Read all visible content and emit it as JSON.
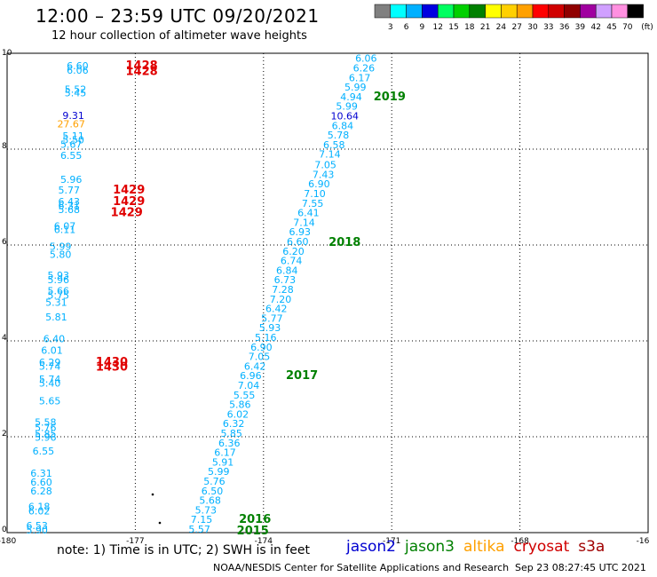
{
  "header": {
    "title": "12:00 – 23:59 UTC 09/20/2021",
    "subtitle": "12 hour collection of altimeter wave heights"
  },
  "scale": {
    "unit": "(ft)",
    "ticks": [
      "3",
      "6",
      "9",
      "12",
      "15",
      "18",
      "21",
      "24",
      "27",
      "30",
      "33",
      "36",
      "39",
      "42",
      "45",
      "70"
    ],
    "colors": [
      "#808080",
      "#00ffff",
      "#00b0ff",
      "#0000e0",
      "#00ff60",
      "#00d000",
      "#008000",
      "#ffff00",
      "#ffd000",
      "#ffa000",
      "#ff0000",
      "#d00000",
      "#900000",
      "#a000a0",
      "#d0a0ff",
      "#ff90e0",
      "#000000"
    ]
  },
  "axes": {
    "x_ticks": [
      "-180",
      "-177",
      "-174",
      "-171",
      "-168",
      "-16"
    ],
    "y_ticks": [
      "10",
      "8",
      "6",
      "4",
      "2",
      "0"
    ]
  },
  "footer": {
    "note": "note:  1) Time is in UTC;  2) SWH is in feet",
    "credit": "NOAA/NESDIS Center for Satellite Applications and Research",
    "timestamp": "Sep 23 08:27:45 UTC 2021"
  },
  "legend": [
    {
      "name": "jason2",
      "color": "#0000d0"
    },
    {
      "name": "jason3",
      "color": "#008000"
    },
    {
      "name": "altika",
      "color": "#ffa000"
    },
    {
      "name": "cryosat",
      "color": "#d00000"
    },
    {
      "name": "s3a",
      "color": "#a00000"
    }
  ],
  "track_a_values": [
    {
      "v": "6.60",
      "lon": -178.35,
      "lat": 9.67,
      "c": "#00b0ff"
    },
    {
      "v": "6.06",
      "lon": -178.35,
      "lat": 9.57,
      "c": "#00b0ff"
    },
    {
      "v": "5.52",
      "lon": -178.4,
      "lat": 9.18,
      "c": "#00b0ff"
    },
    {
      "v": "5.45",
      "lon": -178.4,
      "lat": 9.1,
      "c": "#00b0ff"
    },
    {
      "v": "9.31",
      "lon": -178.45,
      "lat": 8.63,
      "c": "#0000d0"
    },
    {
      "v": "27.67",
      "lon": -178.5,
      "lat": 8.45,
      "c": "#ffa000"
    },
    {
      "v": "5.11",
      "lon": -178.45,
      "lat": 8.2,
      "c": "#00b0ff"
    },
    {
      "v": "5.50",
      "lon": -178.45,
      "lat": 8.12,
      "c": "#00b0ff"
    },
    {
      "v": "5.67",
      "lon": -178.5,
      "lat": 8.03,
      "c": "#00b0ff"
    },
    {
      "v": "6.55",
      "lon": -178.5,
      "lat": 7.8,
      "c": "#00b0ff"
    },
    {
      "v": "5.96",
      "lon": -178.5,
      "lat": 7.3,
      "c": "#00b0ff"
    },
    {
      "v": "5.77",
      "lon": -178.55,
      "lat": 7.07,
      "c": "#00b0ff"
    },
    {
      "v": "6.43",
      "lon": -178.55,
      "lat": 6.83,
      "c": "#00b0ff"
    },
    {
      "v": "6.31",
      "lon": -178.55,
      "lat": 6.75,
      "c": "#00b0ff"
    },
    {
      "v": "5.68",
      "lon": -178.55,
      "lat": 6.67,
      "c": "#00b0ff"
    },
    {
      "v": "6.07",
      "lon": -178.65,
      "lat": 6.32,
      "c": "#00b0ff"
    },
    {
      "v": "6.11",
      "lon": -178.65,
      "lat": 6.25,
      "c": "#00b0ff"
    },
    {
      "v": "5.99",
      "lon": -178.75,
      "lat": 5.9,
      "c": "#00b0ff"
    },
    {
      "v": "5.80",
      "lon": -178.75,
      "lat": 5.73,
      "c": "#00b0ff"
    },
    {
      "v": "5.93",
      "lon": -178.8,
      "lat": 5.3,
      "c": "#00b0ff"
    },
    {
      "v": "5.96",
      "lon": -178.8,
      "lat": 5.2,
      "c": "#00b0ff"
    },
    {
      "v": "5.66",
      "lon": -178.8,
      "lat": 4.97,
      "c": "#00b0ff"
    },
    {
      "v": "5.75",
      "lon": -178.8,
      "lat": 4.88,
      "c": "#00b0ff"
    },
    {
      "v": "5.31",
      "lon": -178.85,
      "lat": 4.73,
      "c": "#00b0ff"
    },
    {
      "v": "5.81",
      "lon": -178.85,
      "lat": 4.43,
      "c": "#00b0ff"
    },
    {
      "v": "6.40",
      "lon": -178.9,
      "lat": 3.97,
      "c": "#00b0ff"
    },
    {
      "v": "6.01",
      "lon": -178.95,
      "lat": 3.73,
      "c": "#00b0ff"
    },
    {
      "v": "6.29",
      "lon": -179.0,
      "lat": 3.48,
      "c": "#00b0ff"
    },
    {
      "v": "5.74",
      "lon": -179.0,
      "lat": 3.4,
      "c": "#00b0ff"
    },
    {
      "v": "5.74",
      "lon": -179.0,
      "lat": 3.13,
      "c": "#00b0ff"
    },
    {
      "v": "5.40",
      "lon": -179.0,
      "lat": 3.05,
      "c": "#00b0ff"
    },
    {
      "v": "5.65",
      "lon": -179.0,
      "lat": 2.68,
      "c": "#00b0ff"
    },
    {
      "v": "5.58",
      "lon": -179.1,
      "lat": 2.23,
      "c": "#00b0ff"
    },
    {
      "v": "5.76",
      "lon": -179.1,
      "lat": 2.12,
      "c": "#00b0ff"
    },
    {
      "v": "5.85",
      "lon": -179.1,
      "lat": 1.99,
      "c": "#00b0ff"
    },
    {
      "v": "5.96",
      "lon": -179.1,
      "lat": 1.92,
      "c": "#00b0ff"
    },
    {
      "v": "6.55",
      "lon": -179.15,
      "lat": 1.63,
      "c": "#00b0ff"
    },
    {
      "v": "6.31",
      "lon": -179.2,
      "lat": 1.17,
      "c": "#00b0ff"
    },
    {
      "v": "6.60",
      "lon": -179.2,
      "lat": 0.98,
      "c": "#00b0ff"
    },
    {
      "v": "6.28",
      "lon": -179.2,
      "lat": 0.8,
      "c": "#00b0ff"
    },
    {
      "v": "6.18",
      "lon": -179.25,
      "lat": 0.47,
      "c": "#00b0ff"
    },
    {
      "v": "6.02",
      "lon": -179.25,
      "lat": 0.38,
      "c": "#00b0ff"
    },
    {
      "v": "6.53",
      "lon": -179.3,
      "lat": 0.07,
      "c": "#00b0ff"
    },
    {
      "v": "5.90",
      "lon": -179.3,
      "lat": -0.02,
      "c": "#00b0ff"
    }
  ],
  "track_b_values": [
    {
      "v": "6.06",
      "lon": -171.6,
      "lat": 9.82,
      "c": "#00b0ff"
    },
    {
      "v": "6.26",
      "lon": -171.65,
      "lat": 9.62,
      "c": "#00b0ff"
    },
    {
      "v": "6.17",
      "lon": -171.75,
      "lat": 9.42,
      "c": "#00b0ff"
    },
    {
      "v": "5.99",
      "lon": -171.85,
      "lat": 9.22,
      "c": "#00b0ff"
    },
    {
      "v": "4.94",
      "lon": -171.95,
      "lat": 9.02,
      "c": "#00b0ff"
    },
    {
      "v": "5.99",
      "lon": -172.05,
      "lat": 8.82,
      "c": "#00b0ff"
    },
    {
      "v": "10.64",
      "lon": -172.1,
      "lat": 8.62,
      "c": "#0000d0"
    },
    {
      "v": "6.84",
      "lon": -172.15,
      "lat": 8.42,
      "c": "#00b0ff"
    },
    {
      "v": "5.78",
      "lon": -172.25,
      "lat": 8.22,
      "c": "#00b0ff"
    },
    {
      "v": "6.58",
      "lon": -172.35,
      "lat": 8.02,
      "c": "#00b0ff"
    },
    {
      "v": "7.14",
      "lon": -172.45,
      "lat": 7.82,
      "c": "#00b0ff"
    },
    {
      "v": "7.05",
      "lon": -172.55,
      "lat": 7.6,
      "c": "#00b0ff"
    },
    {
      "v": "7.43",
      "lon": -172.6,
      "lat": 7.4,
      "c": "#00b0ff"
    },
    {
      "v": "6.90",
      "lon": -172.7,
      "lat": 7.2,
      "c": "#00b0ff"
    },
    {
      "v": "7.10",
      "lon": -172.8,
      "lat": 7.0,
      "c": "#00b0ff"
    },
    {
      "v": "7.55",
      "lon": -172.85,
      "lat": 6.8,
      "c": "#00b0ff"
    },
    {
      "v": "6.41",
      "lon": -172.95,
      "lat": 6.6,
      "c": "#00b0ff"
    },
    {
      "v": "7.14",
      "lon": -173.05,
      "lat": 6.4,
      "c": "#00b0ff"
    },
    {
      "v": "6.93",
      "lon": -173.15,
      "lat": 6.2,
      "c": "#00b0ff"
    },
    {
      "v": "6.60",
      "lon": -173.2,
      "lat": 6.0,
      "c": "#00b0ff"
    },
    {
      "v": "6.20",
      "lon": -173.3,
      "lat": 5.8,
      "c": "#00b0ff"
    },
    {
      "v": "6.74",
      "lon": -173.35,
      "lat": 5.6,
      "c": "#00b0ff"
    },
    {
      "v": "6.84",
      "lon": -173.45,
      "lat": 5.4,
      "c": "#00b0ff"
    },
    {
      "v": "6.73",
      "lon": -173.5,
      "lat": 5.2,
      "c": "#00b0ff"
    },
    {
      "v": "7.28",
      "lon": -173.55,
      "lat": 5.0,
      "c": "#00b0ff"
    },
    {
      "v": "7.20",
      "lon": -173.6,
      "lat": 4.8,
      "c": "#00b0ff"
    },
    {
      "v": "6.42",
      "lon": -173.7,
      "lat": 4.6,
      "c": "#00b0ff"
    },
    {
      "v": "5.77",
      "lon": -173.8,
      "lat": 4.4,
      "c": "#00b0ff"
    },
    {
      "v": "5.93",
      "lon": -173.85,
      "lat": 4.2,
      "c": "#00b0ff"
    },
    {
      "v": "5.16",
      "lon": -173.95,
      "lat": 4.0,
      "c": "#00b0ff"
    },
    {
      "v": "6.90",
      "lon": -174.05,
      "lat": 3.8,
      "c": "#00b0ff"
    },
    {
      "v": "7.05",
      "lon": -174.1,
      "lat": 3.6,
      "c": "#00b0ff"
    },
    {
      "v": "6.42",
      "lon": -174.2,
      "lat": 3.4,
      "c": "#00b0ff"
    },
    {
      "v": "6.96",
      "lon": -174.3,
      "lat": 3.2,
      "c": "#00b0ff"
    },
    {
      "v": "7.04",
      "lon": -174.35,
      "lat": 3.0,
      "c": "#00b0ff"
    },
    {
      "v": "5.55",
      "lon": -174.45,
      "lat": 2.8,
      "c": "#00b0ff"
    },
    {
      "v": "5.86",
      "lon": -174.55,
      "lat": 2.6,
      "c": "#00b0ff"
    },
    {
      "v": "6.02",
      "lon": -174.6,
      "lat": 2.4,
      "c": "#00b0ff"
    },
    {
      "v": "6.32",
      "lon": -174.7,
      "lat": 2.2,
      "c": "#00b0ff"
    },
    {
      "v": "5.85",
      "lon": -174.75,
      "lat": 2.0,
      "c": "#00b0ff"
    },
    {
      "v": "6.36",
      "lon": -174.8,
      "lat": 1.8,
      "c": "#00b0ff"
    },
    {
      "v": "6.17",
      "lon": -174.9,
      "lat": 1.6,
      "c": "#00b0ff"
    },
    {
      "v": "5.91",
      "lon": -174.95,
      "lat": 1.4,
      "c": "#00b0ff"
    },
    {
      "v": "5.99",
      "lon": -175.05,
      "lat": 1.2,
      "c": "#00b0ff"
    },
    {
      "v": "5.76",
      "lon": -175.15,
      "lat": 1.0,
      "c": "#00b0ff"
    },
    {
      "v": "6.50",
      "lon": -175.2,
      "lat": 0.8,
      "c": "#00b0ff"
    },
    {
      "v": "5.68",
      "lon": -175.25,
      "lat": 0.6,
      "c": "#00b0ff"
    },
    {
      "v": "5.73",
      "lon": -175.35,
      "lat": 0.4,
      "c": "#00b0ff"
    },
    {
      "v": "7.15",
      "lon": -175.45,
      "lat": 0.2,
      "c": "#00b0ff"
    },
    {
      "v": "5.57",
      "lon": -175.5,
      "lat": 0.0,
      "c": "#00b0ff"
    }
  ],
  "pass_labels": [
    {
      "t": "1428",
      "lon": -176.85,
      "lat": 9.67,
      "c": "#e00000"
    },
    {
      "t": "1428",
      "lon": -176.85,
      "lat": 9.55,
      "c": "#e00000"
    },
    {
      "t": "1429",
      "lon": -177.15,
      "lat": 7.07,
      "c": "#e00000"
    },
    {
      "t": "1429",
      "lon": -177.15,
      "lat": 6.83,
      "c": "#e00000"
    },
    {
      "t": "1429",
      "lon": -177.2,
      "lat": 6.6,
      "c": "#e00000"
    },
    {
      "t": "1430",
      "lon": -177.55,
      "lat": 3.48,
      "c": "#e00000"
    },
    {
      "t": "1430",
      "lon": -177.55,
      "lat": 3.38,
      "c": "#e00000"
    },
    {
      "t": "2019",
      "lon": -171.05,
      "lat": 9.02,
      "c": "#008000"
    },
    {
      "t": "2018",
      "lon": -172.1,
      "lat": 5.98,
      "c": "#008000"
    },
    {
      "t": "2017",
      "lon": -173.1,
      "lat": 3.2,
      "c": "#008000"
    },
    {
      "t": "2016",
      "lon": -174.2,
      "lat": 0.2,
      "c": "#008000"
    },
    {
      "t": "2015",
      "lon": -174.25,
      "lat": -0.04,
      "c": "#008000"
    }
  ]
}
